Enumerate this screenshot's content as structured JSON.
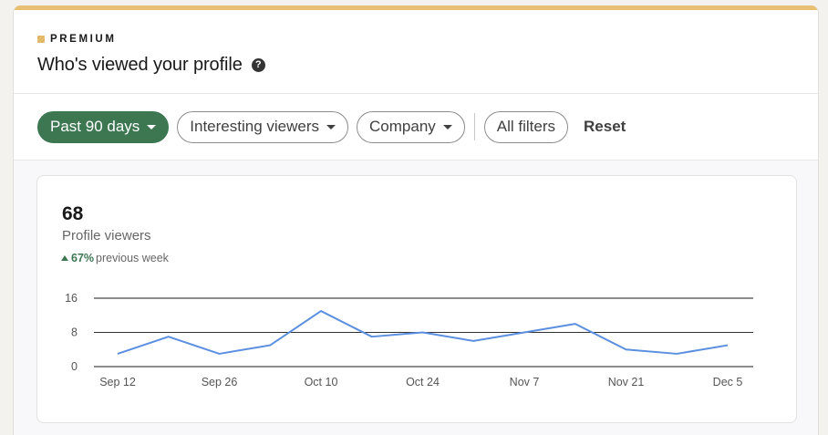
{
  "header": {
    "premium_label": "PREMIUM",
    "title": "Who's viewed your profile",
    "help_icon": "question-circle-icon"
  },
  "filters": {
    "time_range": "Past 90 days",
    "viewers": "Interesting viewers",
    "company": "Company",
    "all_filters": "All filters",
    "reset": "Reset"
  },
  "stats": {
    "value": "68",
    "label": "Profile viewers",
    "change_pct": "67%",
    "change_label": "previous week",
    "change_direction": "up"
  },
  "colors": {
    "accent": "#e7c074",
    "primary_green": "#3c7752",
    "line": "#5b8fe0"
  },
  "chart_data": {
    "type": "line",
    "title": "Profile viewers",
    "xlabel": "",
    "ylabel": "",
    "ylim": [
      0,
      16
    ],
    "yticks": [
      0,
      8,
      16
    ],
    "grid": true,
    "x_tick_labels": [
      "Sep 12",
      "Sep 26",
      "Oct 10",
      "Oct 24",
      "Nov 7",
      "Nov 21",
      "Dec 5"
    ],
    "x": [
      "Sep 12",
      "Sep 19",
      "Sep 26",
      "Oct 3",
      "Oct 10",
      "Oct 17",
      "Oct 24",
      "Oct 31",
      "Nov 7",
      "Nov 14",
      "Nov 21",
      "Nov 28",
      "Dec 5"
    ],
    "series": [
      {
        "name": "Profile viewers",
        "values": [
          3,
          7,
          3,
          5,
          13,
          7,
          8,
          6,
          8,
          10,
          4,
          3,
          5
        ]
      }
    ]
  }
}
